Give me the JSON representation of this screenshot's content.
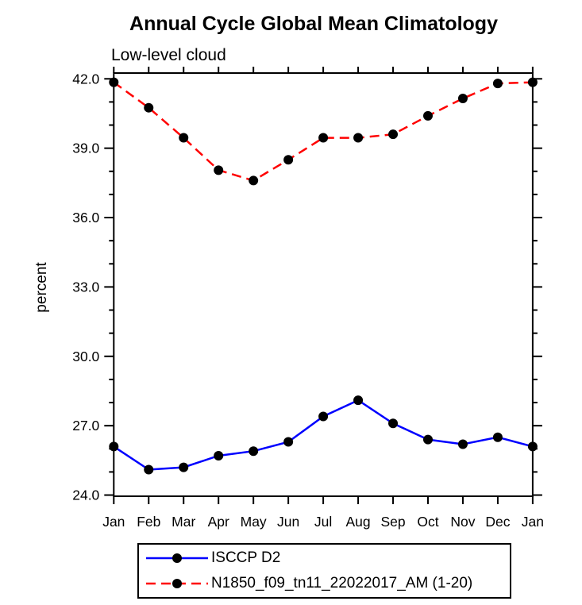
{
  "page": {
    "background": "#ffffff"
  },
  "chart_data": {
    "type": "line",
    "title": "Annual Cycle Global Mean Climatology",
    "subtitle": "Low-level cloud",
    "ylabel": "percent",
    "xlabel": "",
    "x_tick_labels": [
      "Jan",
      "Feb",
      "Mar",
      "Apr",
      "May",
      "Jun",
      "Jul",
      "Aug",
      "Sep",
      "Oct",
      "Nov",
      "Dec",
      "Jan"
    ],
    "y_tick_values": [
      24,
      27,
      30,
      33,
      36,
      39,
      42
    ],
    "y_tick_labels": [
      "24.0",
      "27.0",
      "30.0",
      "33.0",
      "36.0",
      "39.0",
      "42.0"
    ],
    "y_minor_tick_step": 1,
    "ylim": [
      23.95,
      42.25
    ],
    "grid": false,
    "legend_position": "bottom",
    "axis_color": "#000000",
    "marker_color": "#000000",
    "series": [
      {
        "name": "ISCCP D2",
        "color": "#0000ff",
        "line_style": "solid",
        "values": [
          26.1,
          25.1,
          25.2,
          25.7,
          25.9,
          26.3,
          27.4,
          28.1,
          27.1,
          26.4,
          26.2,
          26.5,
          26.1
        ]
      },
      {
        "name": "N1850_f09_tn11_22022017_AM (1-20)",
        "color": "#ff0000",
        "line_style": "dashed",
        "values": [
          41.85,
          40.75,
          39.45,
          38.05,
          37.6,
          38.5,
          39.45,
          39.45,
          39.6,
          40.4,
          41.15,
          41.8,
          41.85
        ]
      }
    ]
  }
}
